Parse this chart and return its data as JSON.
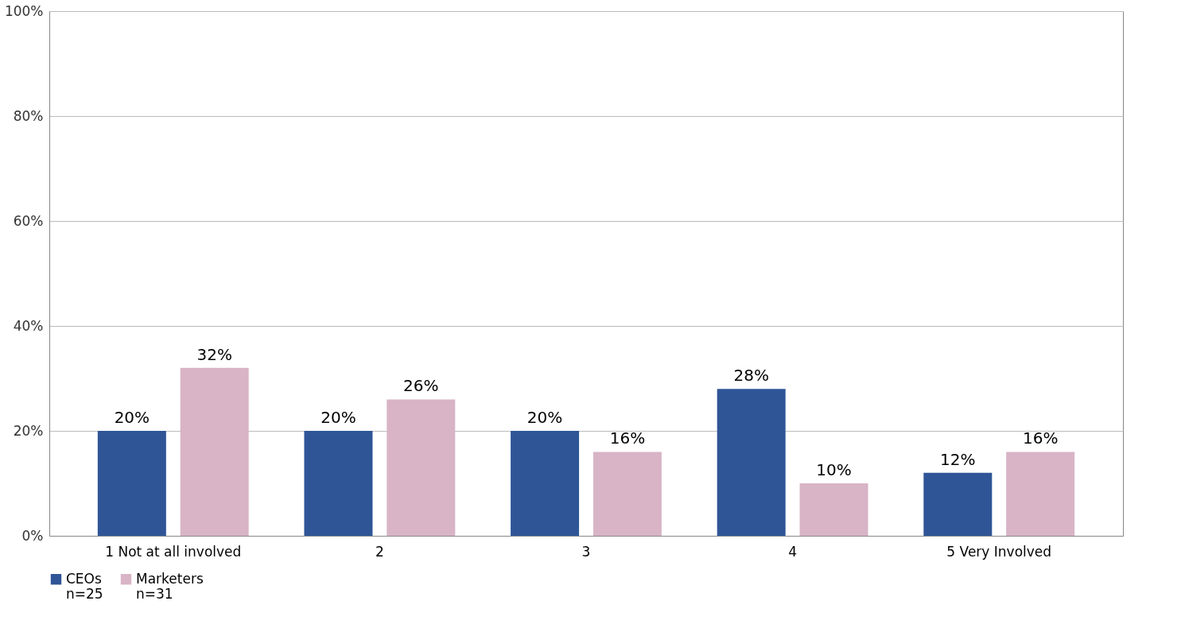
{
  "chart_data": {
    "type": "bar",
    "categories": [
      "1 Not at all involved",
      "2",
      "3",
      "4",
      "5 Very Involved"
    ],
    "series": [
      {
        "name": "CEOs\nn=25",
        "color": "#2f5597",
        "values": [
          20,
          20,
          20,
          28,
          12
        ],
        "value_labels": [
          "20%",
          "20%",
          "20%",
          "28%",
          "12%"
        ]
      },
      {
        "name": "Marketers\nn=31",
        "color": "#d8b4c6",
        "values": [
          32,
          26,
          16,
          10,
          16
        ],
        "value_labels": [
          "32%",
          "26%",
          "16%",
          "10%",
          "16%"
        ]
      }
    ],
    "ylim": [
      0,
      100
    ],
    "yticks": [
      {
        "value": 0,
        "label": "0%"
      },
      {
        "value": 20,
        "label": "20%"
      },
      {
        "value": 40,
        "label": "40%"
      },
      {
        "value": 60,
        "label": "60%"
      },
      {
        "value": 80,
        "label": "80%"
      },
      {
        "value": 100,
        "label": "100%"
      }
    ],
    "grid": "y",
    "legend": "bottom"
  }
}
